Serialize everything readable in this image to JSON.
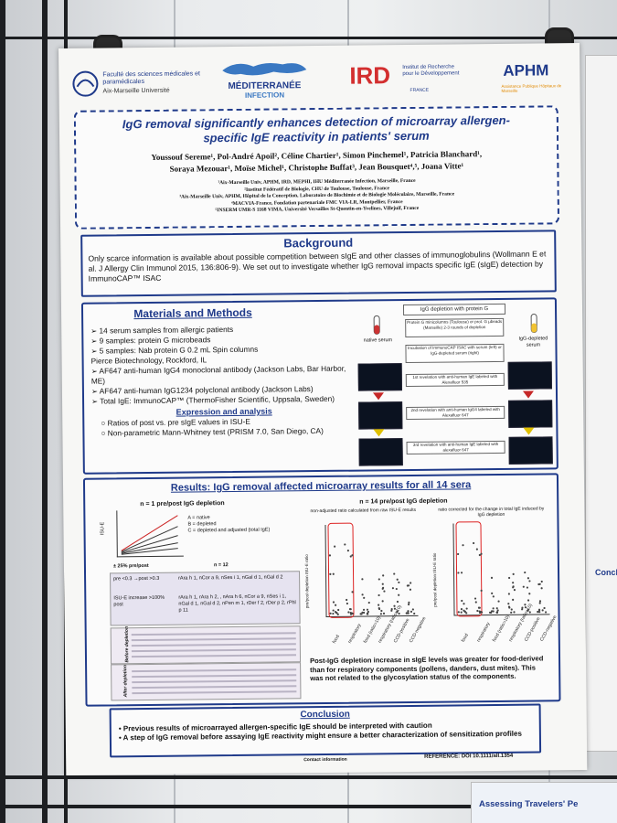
{
  "header": {
    "logo_amu": "Faculté des sciences médicales et paramédicales",
    "logo_amu_sub": "Aix-Marseille Université",
    "logo_mi": "MÉDITERRANÉE",
    "logo_mi_sub": "INFECTION",
    "logo_ird": "IRD",
    "logo_ird_text": "Institut de Recherche pour le Développement",
    "logo_ird_country": "FRANCE",
    "logo_aphm": "APHM",
    "logo_aphm_sub": "Assistance Publique Hôpitaux de Marseille"
  },
  "title": {
    "line1": "IgG removal significantly enhances detection of microarray allergen-",
    "line2": "specific IgE reactivity in patients' serum"
  },
  "authors": {
    "line1": "Youssouf Sereme¹, Pol-André Apoil², Céline Chartier¹, Simon Pinchemel¹, Patricia Blanchard¹,",
    "line2": "Soraya Mezouar¹, Moïse Michel¹, Christophe Buffat³, Jean Bousquet⁴,⁵, Joana Vitte¹"
  },
  "affiliations": [
    "¹Aix-Marseille Univ, APHM, IRD, MEPHI, IHU Méditerranée Infection, Marseille, France",
    "²Institut Fédératif de Biologie, CHU de Toulouse, Toulouse, France",
    "³Aix-Marseille Univ, APHM, Hôpital de la Conception, Laboratoire de Biochimie et de Biologie Moléculaire, Marseille, France",
    "⁴MACVIA-France, Fondation partenariale FMC VIA-LR, Montpellier, France",
    "⁵INSERM UMR-S 1168 VIMA, Université Versailles St-Quentin-en-Yvelines, Villejuif, France"
  ],
  "background": {
    "title": "Background",
    "text": "Only scarce information is available about possible competition between sIgE and other classes of immunoglobulins (Wollmann E et al. J Allergy Clin Immunol 2015, 136:806-9). We set out to investigate whether IgG removal impacts specific IgE (sIgE) detection by ImmunoCAP™ ISAC"
  },
  "methods": {
    "title": "Materials and Methods",
    "items": [
      "➢ 14 serum samples from allergic patients",
      "➢ 9 samples: protein G microbeads",
      "➢ 5 samples: Nab protein G 0.2 mL Spin columns",
      "Pierce Biotechnology, Rockford, IL",
      "➢ AF647 anti-human IgG4 monoclonal antibody (Jackson Labs, Bar Harbor, ME)",
      "➢ AF647 anti-human IgG1234 polyclonal antibody (Jackson Labs)",
      "➢ Total IgE: ImmunoCAP™ (ThermoFisher Scientific, Uppsala, Sweden)"
    ],
    "analysis_title": "Expression and analysis",
    "analysis_items": [
      "○ Ratios of post vs. pre sIgE values in ISU-E",
      "○ Non-parametric Mann-Whitney test (PRISM 7.0, San Diego, CA)"
    ],
    "flow": {
      "top": "IgG depletion with protein G",
      "native": "native serum",
      "depleted": "IgG-depleted serum",
      "step0": "Protein G minicolumns (Toulouse) or prot. G µbeads (Marseille) 2-3 rounds of depletion",
      "step1": "Incubation of ImmunoCAP ISAC with serum (left) or IgG-depleted serum (right)",
      "step2": "1st revelation with anti-human IgE labeled with Alexafluor 535",
      "step3": "2nd revelation with anti-human IgG4 labeled with Alexafluor 647",
      "step4": "3rd revelation with anti-human IgE labeled with alexafluor 647"
    }
  },
  "results": {
    "title": "Results: IgG removal affected microarray results for all 14 sera",
    "left_heading": "n = 1 pre/post IgG depletion",
    "legend": [
      "A = native",
      "B = depleted",
      "C = depleted and adjusted (total IgE)"
    ],
    "ylabel": "ISU-E",
    "pct": "± 25% pre/post",
    "n12": "n = 12",
    "row1_label": "pre <0.3 →post >0.3",
    "row1_val": "rAra h 1, nCor a 9, nSes i 1, nGal d 1, nGal d 2",
    "row2_label": "ISU-E increase >100% post",
    "row2_val": "rAra h 1, rAra h 2, , nAra h 6, nCor a 9, nSes i 1, nGal d 1, nGal d 2, nPen m 1, rDer f 2, rDer p 2, rPhl p 11",
    "before": "Before depletion",
    "after": "After depletion",
    "right_heading": "n = 14 pre/post IgG depletion",
    "plot1_title": "non-adjusted ratio calculated from raw ISU-E results",
    "plot2_title": "ratio corrected for the change in total IgE induced by IgG depletion",
    "plot_ylabel": "pre/post depletion ISU-E ratio",
    "xcats": [
      "food",
      "respiratory",
      "food (ratio>10)",
      "respiratory (ratio>10)",
      "CCD-positive",
      "CCD-negative"
    ],
    "caption": "Post-IgG depletion increase in sIgE levels was greater for food-derived than for respiratory components (pollens, danders, dust mites). This was not related to the glycosylation status of the components."
  },
  "conclusion": {
    "title": "Conclusion",
    "items": [
      "• Previous results of microarrayed allergen-specific IgE should be interpreted with caution",
      "• A step of IgG removal before assaying IgE reactivity might ensure a better characterization of sensitization profiles"
    ]
  },
  "footer": {
    "contact": "Contact information",
    "reference": "REFERENCE: DOI 10.1111/all.1354"
  },
  "neighbor": {
    "bottom_title": "Assessing Travelers' Pe",
    "side_title": "Conclusio"
  }
}
